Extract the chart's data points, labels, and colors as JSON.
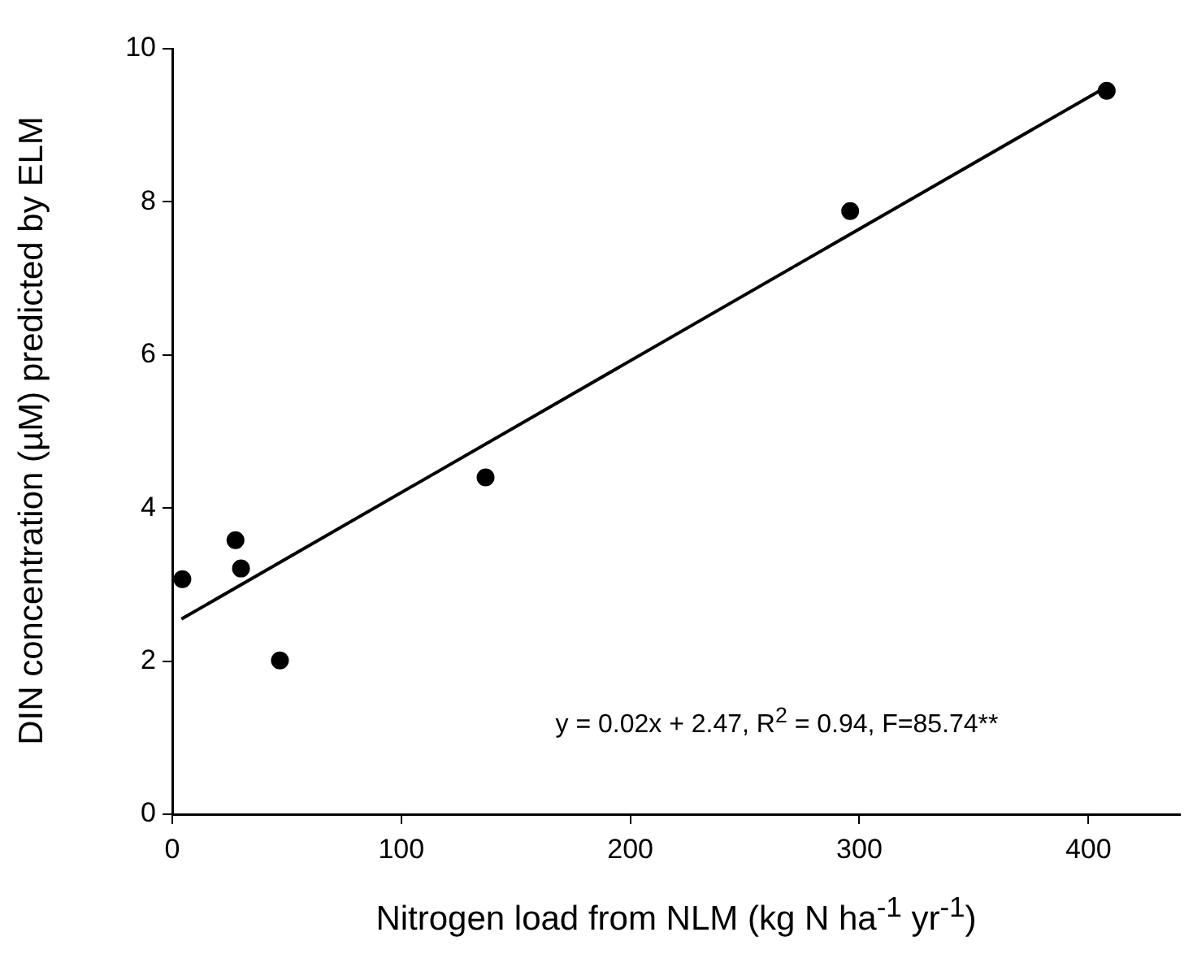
{
  "chart_data": {
    "type": "scatter",
    "xlabel": "Nitrogen load from NLM (kg N ha$^{-1}$ yr$^{-1}$)",
    "ylabel": "DIN concentration (µM) predicted by ELM",
    "xlim": [
      0,
      440
    ],
    "xticks": [
      0,
      100,
      200,
      300,
      400
    ],
    "ylim": [
      0,
      10
    ],
    "yticks": [
      0,
      2,
      4,
      6,
      8,
      10
    ],
    "grid": false,
    "legend": false,
    "marker": "circle",
    "series": [
      {
        "color": "#000000",
        "x": [
          4.4,
          27.6,
          30,
          47,
          136.8,
          296,
          408
        ],
        "values": [
          3.07,
          3.58,
          3.21,
          2.01,
          4.4,
          7.88,
          9.45
        ]
      },
      {
        "type": "line",
        "color": "#000000",
        "marker": "none",
        "line_style": "solid",
        "x": [
          4,
          406
        ],
        "values": [
          2.55,
          9.47
        ]
      }
    ],
    "annotations": [
      "y = 0.02x + 2.47,  R$^{2}$ = 0.94, F=85.74**"
    ]
  }
}
